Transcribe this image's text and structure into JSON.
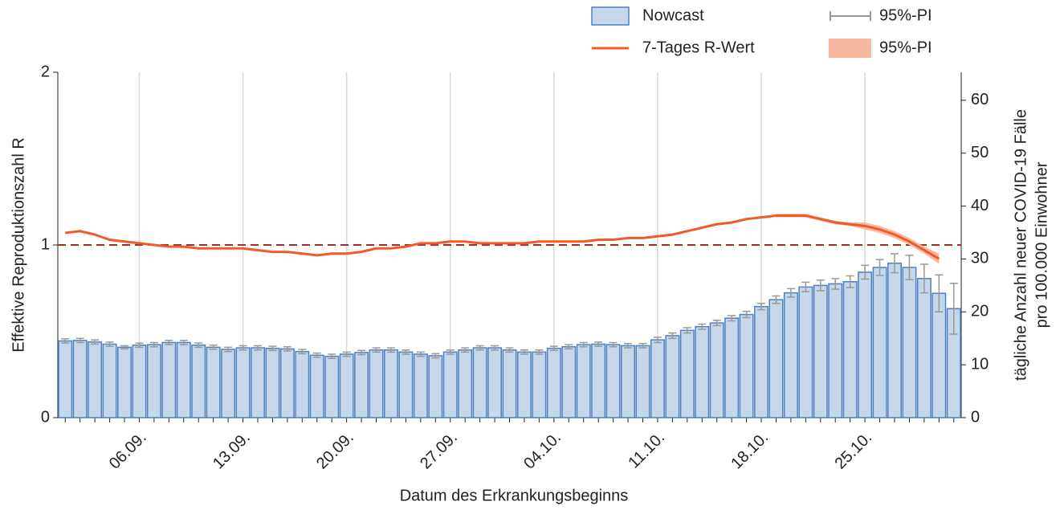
{
  "chart_data": {
    "type": "bar",
    "xlabel": "Datum des Erkrankungsbeginns",
    "ylabel": "Effektive Reproduktionszahl R",
    "y2label": [
      "tägliche Anzahl neuer COVID-19 Fälle",
      "pro 100.000 Einwohner"
    ],
    "categories": [
      null,
      null,
      null,
      null,
      null,
      "06.09.",
      null,
      null,
      null,
      null,
      null,
      null,
      "13.09.",
      null,
      null,
      null,
      null,
      null,
      null,
      "20.09.",
      null,
      null,
      null,
      null,
      null,
      null,
      "27.09.",
      null,
      null,
      null,
      null,
      null,
      null,
      "04.10.",
      null,
      null,
      null,
      null,
      null,
      null,
      "11.10.",
      null,
      null,
      null,
      null,
      null,
      null,
      "18.10.",
      null,
      null,
      null,
      null,
      null,
      null,
      "25.10.",
      null,
      null,
      null,
      null,
      null,
      null
    ],
    "ylim": [
      0,
      2
    ],
    "yticks": [
      0,
      1,
      2
    ],
    "y2lim": [
      0,
      65.3
    ],
    "y2ticks": [
      0,
      10,
      20,
      30,
      40,
      50,
      60
    ],
    "hline": 1,
    "hline_color": "#a52a2a",
    "grid": true,
    "series": [
      {
        "name": "Nowcast",
        "type": "bar",
        "axis": "y2",
        "color": "#c5d7ea",
        "edge": "#4f81bd",
        "error_name": "95%-PI",
        "error_color": "#999999",
        "values": [
          14.5,
          14.6,
          14.3,
          13.9,
          13.3,
          13.7,
          13.8,
          14.2,
          14.2,
          13.7,
          13.3,
          12.9,
          13.2,
          13.2,
          13.1,
          13.0,
          12.5,
          11.8,
          11.6,
          12.0,
          12.3,
          12.8,
          12.8,
          12.4,
          12.0,
          11.7,
          12.4,
          12.8,
          13.2,
          13.2,
          12.8,
          12.4,
          12.4,
          13.1,
          13.4,
          13.8,
          13.9,
          13.8,
          13.6,
          13.6,
          14.7,
          15.5,
          16.5,
          17.2,
          17.9,
          18.8,
          19.5,
          21.0,
          22.3,
          23.6,
          24.7,
          25.0,
          25.3,
          25.7,
          27.5,
          28.4,
          29.2,
          28.4,
          26.3,
          23.5,
          20.6
        ],
        "errors": [
          0.4,
          0.4,
          0.4,
          0.4,
          0.3,
          0.4,
          0.4,
          0.4,
          0.4,
          0.4,
          0.4,
          0.4,
          0.4,
          0.4,
          0.4,
          0.4,
          0.4,
          0.4,
          0.4,
          0.4,
          0.4,
          0.4,
          0.4,
          0.4,
          0.4,
          0.4,
          0.4,
          0.4,
          0.4,
          0.4,
          0.4,
          0.4,
          0.4,
          0.4,
          0.4,
          0.4,
          0.4,
          0.4,
          0.4,
          0.4,
          0.5,
          0.5,
          0.5,
          0.5,
          0.5,
          0.5,
          0.6,
          0.6,
          0.7,
          0.8,
          0.9,
          1.0,
          1.0,
          1.1,
          1.3,
          1.5,
          1.8,
          2.3,
          2.7,
          3.5,
          4.8
        ]
      },
      {
        "name": "7-Tages R-Wert",
        "type": "line",
        "axis": "y",
        "color": "#f15a29",
        "band_name": "95%-PI",
        "band_color": "#f9b8a0",
        "values": [
          1.07,
          1.08,
          1.06,
          1.03,
          1.02,
          1.01,
          1.0,
          0.99,
          0.99,
          0.98,
          0.98,
          0.98,
          0.98,
          0.97,
          0.96,
          0.96,
          0.95,
          0.94,
          0.95,
          0.95,
          0.96,
          0.98,
          0.98,
          0.99,
          1.01,
          1.01,
          1.02,
          1.02,
          1.01,
          1.01,
          1.01,
          1.01,
          1.02,
          1.02,
          1.02,
          1.02,
          1.03,
          1.03,
          1.04,
          1.04,
          1.05,
          1.06,
          1.08,
          1.1,
          1.12,
          1.13,
          1.15,
          1.16,
          1.17,
          1.17,
          1.17,
          1.15,
          1.13,
          1.12,
          1.11,
          1.09,
          1.06,
          1.02,
          0.97,
          0.92,
          null
        ],
        "lower": [
          null,
          null,
          null,
          null,
          null,
          null,
          null,
          null,
          null,
          null,
          null,
          null,
          null,
          null,
          null,
          null,
          null,
          null,
          null,
          null,
          null,
          null,
          null,
          null,
          null,
          null,
          null,
          null,
          null,
          null,
          null,
          null,
          null,
          null,
          null,
          null,
          null,
          null,
          null,
          null,
          null,
          null,
          null,
          null,
          null,
          null,
          null,
          null,
          1.16,
          1.16,
          1.16,
          1.14,
          1.12,
          1.11,
          1.09,
          1.07,
          1.04,
          1.0,
          0.95,
          0.89,
          null
        ],
        "upper": [
          null,
          null,
          null,
          null,
          null,
          null,
          null,
          null,
          null,
          null,
          null,
          null,
          null,
          null,
          null,
          null,
          null,
          null,
          null,
          null,
          null,
          null,
          null,
          null,
          null,
          null,
          null,
          null,
          null,
          null,
          null,
          null,
          null,
          null,
          null,
          null,
          null,
          null,
          null,
          null,
          null,
          null,
          null,
          null,
          null,
          null,
          null,
          null,
          1.18,
          1.18,
          1.18,
          1.16,
          1.14,
          1.13,
          1.13,
          1.11,
          1.08,
          1.04,
          0.99,
          0.95,
          null
        ]
      }
    ]
  }
}
